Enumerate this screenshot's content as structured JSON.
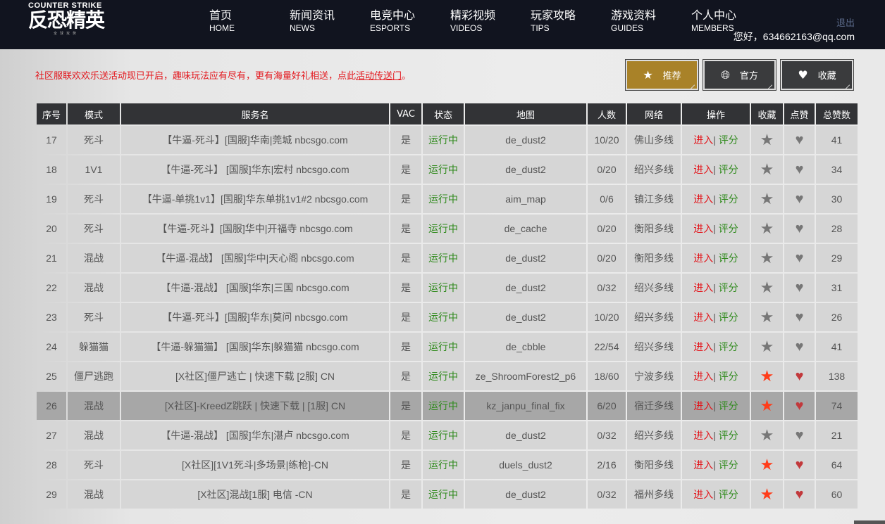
{
  "header": {
    "logo_en": "COUNTER STRIKE",
    "logo_cn": "反恐精英",
    "logo_sub": "全球攻势",
    "nav": [
      {
        "cn": "首页",
        "en": "HOME"
      },
      {
        "cn": "新闻资讯",
        "en": "NEWS"
      },
      {
        "cn": "电竞中心",
        "en": "ESPORTS"
      },
      {
        "cn": "精彩视频",
        "en": "VIDEOS"
      },
      {
        "cn": "玩家攻略",
        "en": "TIPS"
      },
      {
        "cn": "游戏资料",
        "en": "GUIDES"
      },
      {
        "cn": "个人中心",
        "en": "MEMBERS"
      }
    ],
    "logout": "退出",
    "greeting": "您好，634662163@qq.com"
  },
  "notice": {
    "text": "社区服联欢欢乐送活动现已开启，趣味玩法应有尽有，更有海量好礼相送，点此",
    "link": "活动传送门",
    "end": "。"
  },
  "buttons": [
    {
      "label": "推荐",
      "icon": "star-icon",
      "active": true
    },
    {
      "label": "官方",
      "icon": "globe-icon"
    },
    {
      "label": "收藏",
      "icon": "heart-icon"
    }
  ],
  "colors": {
    "accent": "#a98228",
    "red": "#e3161c",
    "green": "#2f8a1c"
  },
  "table": {
    "headers": [
      "序号",
      "模式",
      "服务名",
      "VAC",
      "状态",
      "地图",
      "人数",
      "网络",
      "操作",
      "收藏",
      "点赞",
      "总赞数"
    ],
    "enter": "进入",
    "sep": "|",
    "rate": "评分",
    "rows": [
      {
        "no": "17",
        "mode": "死斗",
        "name": "【牛逼-死斗】[国服]华南|莞城 nbcsgo.com",
        "vac": "是",
        "status": "运行中",
        "map": "de_dust2",
        "players": "10/20",
        "net": "佛山多线",
        "fav": false,
        "liked": false,
        "likes": "41"
      },
      {
        "no": "18",
        "mode": "1V1",
        "name": "【牛逼-死斗】 [国服]华东|宏村 nbcsgo.com",
        "vac": "是",
        "status": "运行中",
        "map": "de_dust2",
        "players": "0/20",
        "net": "绍兴多线",
        "fav": false,
        "liked": false,
        "likes": "34"
      },
      {
        "no": "19",
        "mode": "死斗",
        "name": "【牛逼-单挑1v1】[国服]华东单挑1v1#2 nbcsgo.com",
        "vac": "是",
        "status": "运行中",
        "map": "aim_map",
        "players": "0/6",
        "net": "镇江多线",
        "fav": false,
        "liked": false,
        "likes": "30"
      },
      {
        "no": "20",
        "mode": "死斗",
        "name": "【牛逼-死斗】[国服]华中|开福寺 nbcsgo.com",
        "vac": "是",
        "status": "运行中",
        "map": "de_cache",
        "players": "0/20",
        "net": "衡阳多线",
        "fav": false,
        "liked": false,
        "likes": "28"
      },
      {
        "no": "21",
        "mode": "混战",
        "name": "【牛逼-混战】 [国服]华中|天心阁 nbcsgo.com",
        "vac": "是",
        "status": "运行中",
        "map": "de_dust2",
        "players": "0/20",
        "net": "衡阳多线",
        "fav": false,
        "liked": false,
        "likes": "29"
      },
      {
        "no": "22",
        "mode": "混战",
        "name": "【牛逼-混战】 [国服]华东|三国 nbcsgo.com",
        "vac": "是",
        "status": "运行中",
        "map": "de_dust2",
        "players": "0/32",
        "net": "绍兴多线",
        "fav": false,
        "liked": false,
        "likes": "31"
      },
      {
        "no": "23",
        "mode": "死斗",
        "name": "【牛逼-死斗】[国服]华东|莫问 nbcsgo.com",
        "vac": "是",
        "status": "运行中",
        "map": "de_dust2",
        "players": "10/20",
        "net": "绍兴多线",
        "fav": false,
        "liked": false,
        "likes": "26"
      },
      {
        "no": "24",
        "mode": "躲猫猫",
        "name": "【牛逼-躲猫猫】 [国服]华东|躲猫猫 nbcsgo.com",
        "vac": "是",
        "status": "运行中",
        "map": "de_cbble",
        "players": "22/54",
        "net": "绍兴多线",
        "fav": false,
        "liked": false,
        "likes": "41"
      },
      {
        "no": "25",
        "mode": "僵尸逃跑",
        "name": "[X社区]僵尸逃亡 | 快速下载 [2服] CN",
        "vac": "是",
        "status": "运行中",
        "map": "ze_ShroomForest2_p6",
        "players": "18/60",
        "net": "宁波多线",
        "fav": true,
        "liked": true,
        "likes": "138"
      },
      {
        "no": "26",
        "mode": "混战",
        "name": "[X社区]-KreedZ跳跃 | 快速下载 | [1服] CN",
        "vac": "是",
        "status": "运行中",
        "map": "kz_janpu_final_fix",
        "players": "6/20",
        "net": "宿迁多线",
        "fav": true,
        "liked": true,
        "likes": "74",
        "selected": true
      },
      {
        "no": "27",
        "mode": "混战",
        "name": "【牛逼-混战】 [国服]华东|湛卢 nbcsgo.com",
        "vac": "是",
        "status": "运行中",
        "map": "de_dust2",
        "players": "0/32",
        "net": "绍兴多线",
        "fav": false,
        "liked": false,
        "likes": "21"
      },
      {
        "no": "28",
        "mode": "死斗",
        "name": "[X社区][1V1死斗|多场景|练枪]-CN",
        "vac": "是",
        "status": "运行中",
        "map": "duels_dust2",
        "players": "2/16",
        "net": "衡阳多线",
        "fav": true,
        "liked": true,
        "likes": "64"
      },
      {
        "no": "29",
        "mode": "混战",
        "name": "[X社区]混战[1服] 电信 -CN",
        "vac": "是",
        "status": "运行中",
        "map": "de_dust2",
        "players": "0/32",
        "net": "福州多线",
        "fav": true,
        "liked": true,
        "likes": "60"
      }
    ]
  }
}
